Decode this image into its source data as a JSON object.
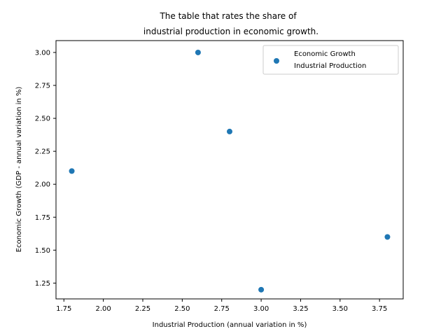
{
  "chart_data": {
    "type": "scatter",
    "title": [
      "The table that rates the share of",
      "industrial production in economic growth."
    ],
    "xlabel": "Industrial Production (annual variation in %)",
    "ylabel": "Economic Growth (GDP - annual variation in %)",
    "xlim": [
      1.7,
      3.9
    ],
    "ylim": [
      1.13,
      3.09
    ],
    "xticks": [
      1.75,
      2.0,
      2.25,
      2.5,
      2.75,
      3.0,
      3.25,
      3.5,
      3.75
    ],
    "xtick_labels": [
      "1.75",
      "2.00",
      "2.25",
      "2.50",
      "2.75",
      "3.00",
      "3.25",
      "3.50",
      "3.75"
    ],
    "yticks": [
      1.25,
      1.5,
      1.75,
      2.0,
      2.25,
      2.5,
      2.75,
      3.0
    ],
    "ytick_labels": [
      "1.25",
      "1.50",
      "1.75",
      "2.00",
      "2.25",
      "2.50",
      "2.75",
      "3.00"
    ],
    "grid": false,
    "legend_position": "top-right",
    "legend_label": [
      "Economic Growth",
      "Industrial Production"
    ],
    "marker_color": "#1f77b4",
    "points": [
      {
        "x": 1.8,
        "y": 2.1
      },
      {
        "x": 2.6,
        "y": 3.0
      },
      {
        "x": 2.8,
        "y": 2.4
      },
      {
        "x": 3.0,
        "y": 1.2
      },
      {
        "x": 3.8,
        "y": 1.6
      }
    ]
  }
}
